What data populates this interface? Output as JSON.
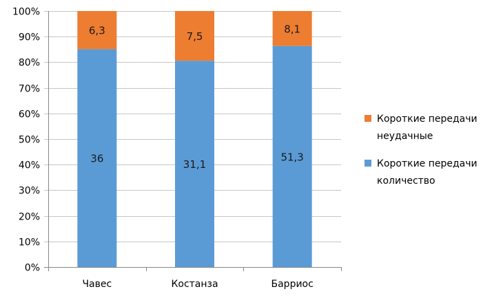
{
  "chart_data": {
    "type": "bar",
    "stacked": true,
    "percent": true,
    "categories": [
      "Чавес",
      "Костанза",
      "Барриос"
    ],
    "series": [
      {
        "name": "Короткие передачи количество",
        "values": [
          36,
          31.1,
          51.3
        ],
        "labels": [
          "36",
          "31,1",
          "51,3"
        ],
        "color": "#5b9bd5"
      },
      {
        "name": "Короткие передачи неудачные",
        "values": [
          6.3,
          7.5,
          8.1
        ],
        "labels": [
          "6,3",
          "7,5",
          "8,1"
        ],
        "color": "#ed7d31"
      }
    ],
    "y_ticks": [
      "0%",
      "10%",
      "20%",
      "30%",
      "40%",
      "50%",
      "60%",
      "70%",
      "80%",
      "90%",
      "100%"
    ],
    "ylim": [
      0,
      100
    ],
    "grid": true,
    "legend_position": "right",
    "legend": [
      {
        "lines": [
          "Короткие передачи",
          "неудачные"
        ],
        "color": "#ed7d31"
      },
      {
        "lines": [
          "Короткие передачи",
          "количество"
        ],
        "color": "#5b9bd5"
      }
    ]
  }
}
